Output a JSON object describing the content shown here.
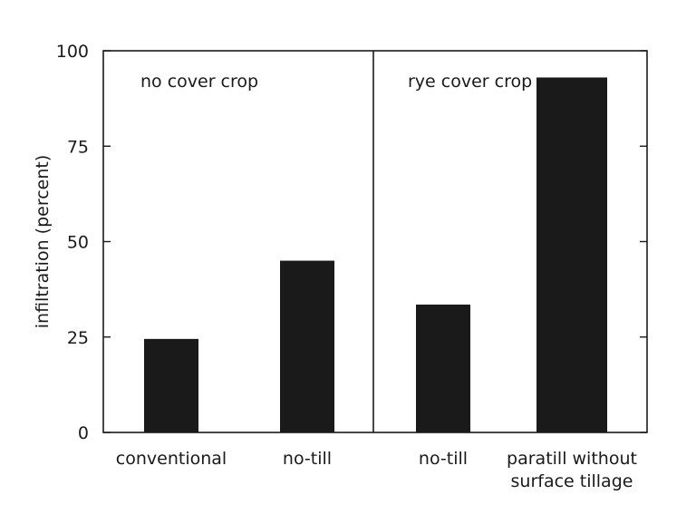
{
  "chart_data": {
    "type": "bar",
    "ylabel": "infiltration (percent)",
    "xlabel": "",
    "ylim": [
      0,
      100
    ],
    "yticks": [
      0,
      25,
      50,
      75,
      100
    ],
    "grid": false,
    "bar_color": "#1a1a1a",
    "panels": [
      {
        "label": "no cover crop",
        "categories": [
          {
            "lines": [
              "conventional"
            ],
            "value": 24.5
          },
          {
            "lines": [
              "no-till"
            ],
            "value": 45
          }
        ]
      },
      {
        "label": "rye cover crop",
        "categories": [
          {
            "lines": [
              "no-till"
            ],
            "value": 33.5
          },
          {
            "lines": [
              "paratill without",
              "surface tillage"
            ],
            "value": 93
          }
        ]
      }
    ]
  }
}
